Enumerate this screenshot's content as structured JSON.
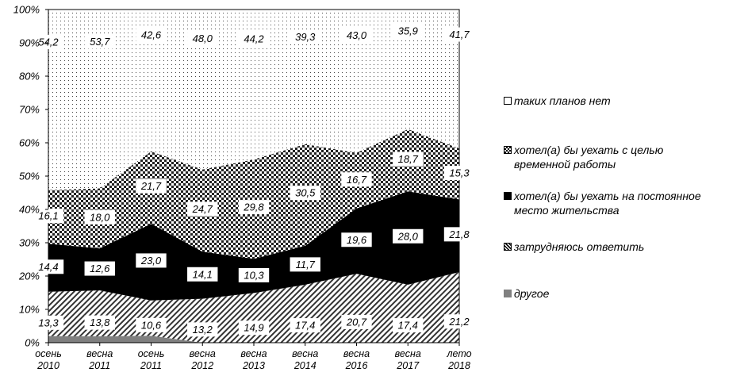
{
  "chart_data": {
    "type": "area",
    "stacked": true,
    "percent": true,
    "x": [
      "осень 2010",
      "весна 2011",
      "осень 2011",
      "весна 2012",
      "весна 2013",
      "весна 2014",
      "весна 2016",
      "весна 2017",
      "лето 2018"
    ],
    "x_lines": [
      [
        "осень",
        "2010"
      ],
      [
        "весна",
        "2011"
      ],
      [
        "осень",
        "2011"
      ],
      [
        "весна",
        "2012"
      ],
      [
        "весна",
        "2013"
      ],
      [
        "весна",
        "2014"
      ],
      [
        "весна",
        "2016"
      ],
      [
        "весна",
        "2017"
      ],
      [
        "лето",
        "2018"
      ]
    ],
    "y_ticks": [
      "0%",
      "10%",
      "20%",
      "30%",
      "40%",
      "50%",
      "60%",
      "70%",
      "80%",
      "90%",
      "100%"
    ],
    "ylim": [
      0,
      100
    ],
    "legend_position": "right",
    "series": [
      {
        "name": "другое",
        "values": [
          2.0,
          1.9,
          2.1,
          0.0,
          0.0,
          0.0,
          0.0,
          0.0,
          0.0
        ],
        "labels": null
      },
      {
        "name": "затрудняюсь ответить",
        "values": [
          13.3,
          13.8,
          10.6,
          13.2,
          14.9,
          17.4,
          20.7,
          17.4,
          21.2
        ],
        "labels": [
          "13,3",
          "13,8",
          "10,6",
          "13,2",
          "14,9",
          "17,4",
          "20,7",
          "17,4",
          "21,2"
        ]
      },
      {
        "name": "хотел(а) бы уехать на постоянное место жительства",
        "values": [
          14.4,
          12.6,
          23.0,
          14.1,
          10.3,
          11.7,
          19.6,
          28.0,
          21.8
        ],
        "labels": [
          "14,4",
          "12,6",
          "23,0",
          "14,1",
          "10,3",
          "11,7",
          "19,6",
          "28,0",
          "21,8"
        ]
      },
      {
        "name": "хотел(а) бы уехать с целью временной работы",
        "values": [
          16.1,
          18.0,
          21.7,
          24.7,
          29.8,
          30.5,
          16.7,
          18.7,
          15.3
        ],
        "labels": [
          "16,1",
          "18,0",
          "21,7",
          "24,7",
          "29,8",
          "30,5",
          "16,7",
          "18,7",
          "15,3"
        ]
      },
      {
        "name": "таких планов нет",
        "values": [
          54.2,
          53.7,
          42.6,
          48.0,
          44.2,
          39.3,
          43.0,
          35.9,
          41.7
        ],
        "labels": [
          "54,2",
          "53,7",
          "42,6",
          "48,0",
          "44,2",
          "39,3",
          "43,0",
          "35,9",
          "41,7"
        ]
      }
    ]
  },
  "legend": {
    "items": [
      {
        "label_lines": [
          "таких планов нет"
        ],
        "swatch": "dots",
        "color": "#ffffff"
      },
      {
        "label_lines": [
          "хотел(а) бы уехать с целью",
          "временной работы"
        ],
        "swatch": "checker",
        "color": "#333333"
      },
      {
        "label_lines": [
          "хотел(а) бы уехать на постоянное",
          "место жительства"
        ],
        "swatch": "solid",
        "color": "#000000"
      },
      {
        "label_lines": [
          "затрудняюсь ответить"
        ],
        "swatch": "hatch",
        "color": "#555555"
      },
      {
        "label_lines": [
          "другое"
        ],
        "swatch": "gray",
        "color": "#808080"
      }
    ]
  }
}
